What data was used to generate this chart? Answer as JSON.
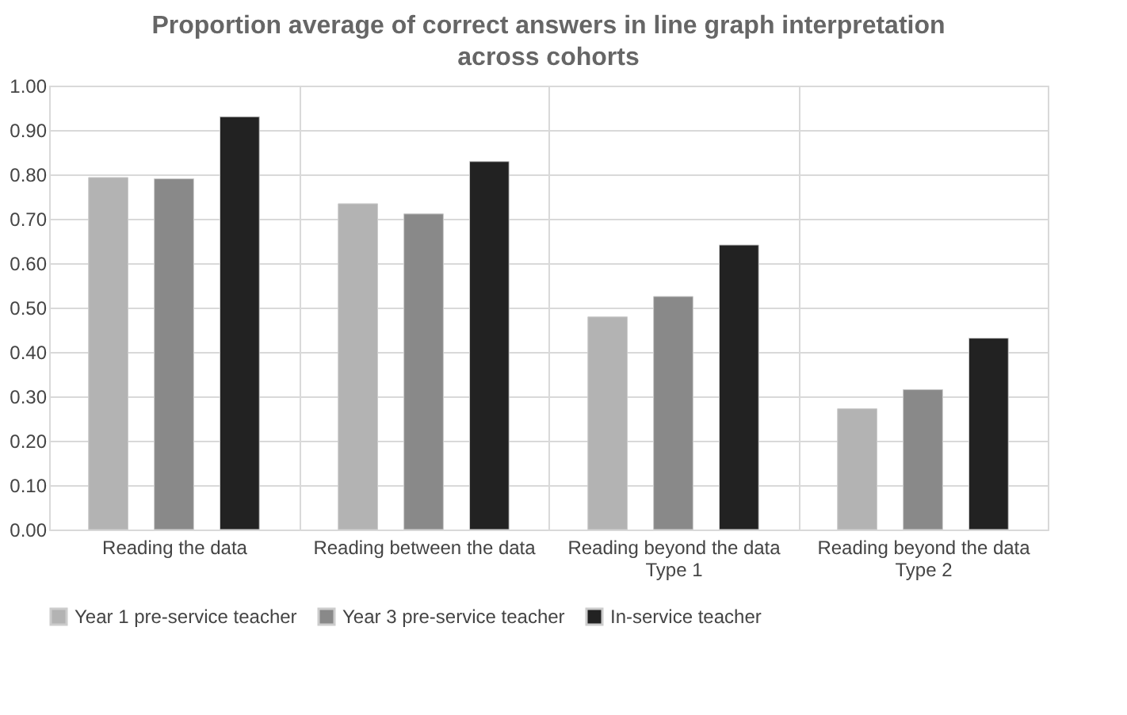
{
  "chart_data": {
    "type": "bar",
    "title": "Proportion average of correct answers in line graph interpretation across cohorts",
    "categories": [
      "Reading the data",
      "Reading between the data",
      "Reading beyond the data\nType 1",
      "Reading beyond the data\nType 2"
    ],
    "series": [
      {
        "name": "Year 1 pre-service teacher",
        "color": "#b3b3b3",
        "values": [
          0.793,
          0.734,
          0.479,
          0.272
        ]
      },
      {
        "name": "Year 3 pre-service teacher",
        "color": "#898989",
        "values": [
          0.79,
          0.711,
          0.525,
          0.315
        ]
      },
      {
        "name": "In-service teacher",
        "color": "#222222",
        "values": [
          0.93,
          0.829,
          0.641,
          0.431
        ]
      }
    ],
    "ylim": [
      0,
      1
    ],
    "yticks": [
      {
        "value": 0,
        "label": "0.00"
      },
      {
        "value": 0.1,
        "label": "0.10"
      },
      {
        "value": 0.2,
        "label": "0.20"
      },
      {
        "value": 0.3,
        "label": "0.30"
      },
      {
        "value": 0.4,
        "label": "0.40"
      },
      {
        "value": 0.5,
        "label": "0.50"
      },
      {
        "value": 0.6,
        "label": "0.60"
      },
      {
        "value": 0.7,
        "label": "0.70"
      },
      {
        "value": 0.8,
        "label": "0.80"
      },
      {
        "value": 0.9,
        "label": "0.90"
      },
      {
        "value": 1,
        "label": "1.00"
      }
    ],
    "grid": true,
    "legend": "bottom"
  }
}
